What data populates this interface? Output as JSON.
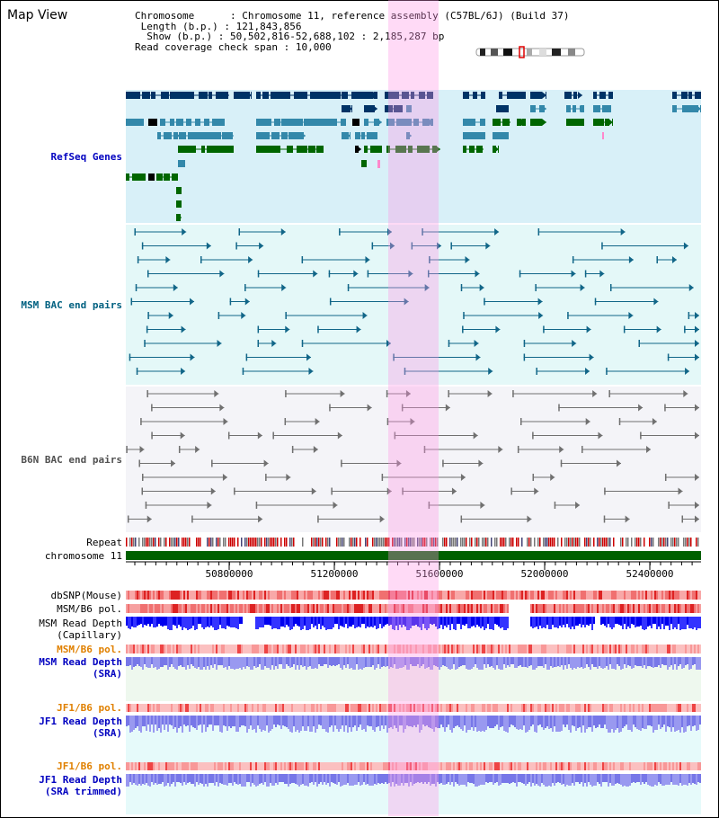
{
  "view_title": "Map View",
  "info": {
    "chromosome_key": "Chromosome",
    "chromosome_value": "Chromosome 11, reference assembly (C57BL/6J) (Build 37)",
    "length_key": "Length (b.p.)",
    "length_value": "121,843,856",
    "show_key": "Show (b.p.)",
    "show_value": "50,502,816-52,688,102 : 2,185,287 bp",
    "span_key": "Read coverage check span",
    "span_value": "10,000"
  },
  "tracks": {
    "refseq": "RefSeq Genes",
    "msm_bac": "MSM BAC end pairs",
    "b6n_bac": "B6N BAC end pairs",
    "repeat": "Repeat",
    "chromosome": "chromosome 11",
    "dbsnp": "dbSNP(Mouse)",
    "msm_b6_pol_1": "MSM/B6 pol.",
    "msm_depth_cap_1": "MSM Read Depth",
    "msm_depth_cap_2": "(Capillary)",
    "msm_b6_pol_2": "MSM/B6 pol.",
    "msm_depth_sra_1": "MSM Read Depth",
    "msm_depth_sra_2": "(SRA)",
    "jf1_b6_pol_1": "JF1/B6 pol.",
    "jf1_depth_sra_1": "JF1 Read Depth",
    "jf1_depth_sra_2": "(SRA)",
    "jf1_b6_pol_2": "JF1/B6 pol.",
    "jf1_depth_trim_1": "JF1 Read Depth",
    "jf1_depth_trim_2": "(SRA trimmed)"
  },
  "axis": {
    "ticks": [
      "50800000",
      "51200000",
      "51600000",
      "52000000",
      "52400000"
    ]
  },
  "colors": {
    "refseq_bg": "#d8f0f8",
    "msm_bg": "#e6f8f8",
    "b6n_bg": "#f4f4f8",
    "highlight": "#ffb0e8",
    "chromosome": "#006000",
    "gene_dark": "#003366",
    "gene_mid": "#3388aa",
    "gene_green": "#006600"
  }
}
